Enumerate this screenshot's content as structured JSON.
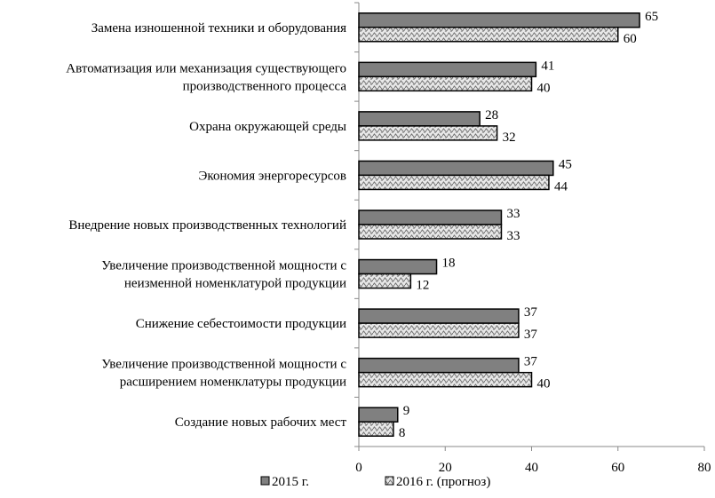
{
  "chart_data": {
    "type": "bar",
    "orientation": "horizontal",
    "categories": [
      [
        "Замена изношенной техники и оборудования"
      ],
      [
        "Автоматизация или механизация существующего",
        "производственного процесса"
      ],
      [
        "Охрана окружающей среды"
      ],
      [
        "Экономия энергоресурсов"
      ],
      [
        "Внедрение новых производственных технологий"
      ],
      [
        "Увеличение производственной мощности с",
        "неизменной  номенклатурой продукции"
      ],
      [
        "Снижение себестоимости продукции"
      ],
      [
        "Увеличение производственной мощности с",
        "расширением номенклатуры продукции"
      ],
      [
        "Создание новых рабочих мест"
      ]
    ],
    "series": [
      {
        "name": "2015 г.",
        "values": [
          65,
          41,
          28,
          45,
          33,
          18,
          37,
          37,
          9
        ],
        "color": "#808080",
        "pattern": "solid"
      },
      {
        "name": "2016 г. (прогноз)",
        "values": [
          60,
          40,
          32,
          44,
          33,
          12,
          37,
          40,
          8
        ],
        "color": "#c8c8c8",
        "pattern": "zigzag-hatch"
      }
    ],
    "xlim": [
      0,
      80
    ],
    "xticks": [
      "0",
      "20",
      "40",
      "60",
      "80"
    ],
    "grid": false,
    "data_labels": true,
    "legend": "bottom",
    "title": "",
    "xlabel": "",
    "ylabel": ""
  }
}
